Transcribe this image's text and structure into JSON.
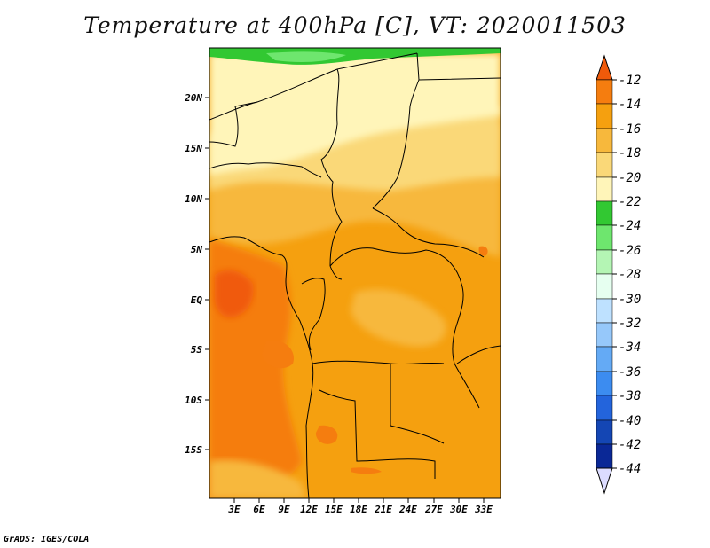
{
  "title": "Temperature at 400hPa [C], VT: 2020011503",
  "credit": "GrADS: IGES/COLA",
  "map": {
    "lat_labels": [
      "20N",
      "15N",
      "10N",
      "5N",
      "EQ",
      "5S",
      "10S",
      "15S"
    ],
    "lon_labels": [
      "3E",
      "6E",
      "9E",
      "12E",
      "15E",
      "18E",
      "21E",
      "24E",
      "27E",
      "30E",
      "33E"
    ]
  },
  "colorbar": {
    "levels": [
      "-12",
      "-14",
      "-16",
      "-18",
      "-20",
      "-22",
      "-24",
      "-26",
      "-28",
      "-30",
      "-32",
      "-34",
      "-36",
      "-38",
      "-40",
      "-42",
      "-44"
    ],
    "colors": {
      "above_-12": "#f05a0a",
      "-12_-14": "#f57d0f",
      "-14_-16": "#f5a00f",
      "-16_-18": "#f7b83c",
      "-18_-20": "#fad878",
      "-20_-22": "#fff5b9",
      "-22_-24": "#32c832",
      "-24_-26": "#6ee66e",
      "-26_-28": "#b4f5b4",
      "-28_-30": "#e6fff0",
      "-30_-32": "#bee1ff",
      "-32_-34": "#96c8fa",
      "-34_-36": "#64aaf5",
      "-36_-38": "#3c8cf0",
      "-38_-40": "#2364dc",
      "-40_-42": "#1446b4",
      "-42_-44": "#0a2896",
      "below_-44": "#dcdcff"
    }
  }
}
